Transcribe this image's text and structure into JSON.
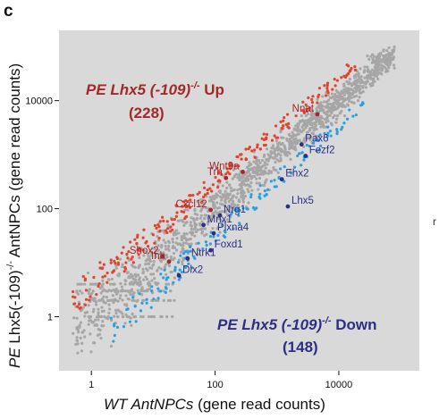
{
  "panel_label": "c",
  "stray_char": "r",
  "colors": {
    "background": "#d9d9d9",
    "nonsignificant": "#a6a6a6",
    "up_points": "#e0452f",
    "down_points": "#2c9fe0",
    "up_labels": "#a3282a",
    "down_labels": "#2d2f86"
  },
  "chart_data": {
    "type": "scatter",
    "scale": "log10",
    "xlabel_italic": "WT AntNPCs",
    "xlabel_rest": " (gene read counts)",
    "ylabel_prefix": "PE ",
    "ylabel_gene": "Lhx5(-109)",
    "ylabel_sup": "-/-",
    "ylabel_rest": " AntNPCs (gene read counts)",
    "xlim": [
      0.3,
      200000
    ],
    "ylim": [
      0.1,
      200000
    ],
    "x_ticks": [
      1,
      100,
      10000
    ],
    "y_ticks": [
      1,
      100,
      10000
    ],
    "x_tick_labels": [
      "1",
      "100",
      "10000"
    ],
    "y_tick_labels": [
      "1",
      "100",
      "10000"
    ],
    "grid": false,
    "up_group": {
      "title_prefix": "PE ",
      "title_gene": "Lhx5 (-109)",
      "title_sup": "-/-",
      "title_suffix": " Up",
      "count": "(228)"
    },
    "down_group": {
      "title_prefix": "PE ",
      "title_gene": "Lhx5 (-109)",
      "title_sup": "-/-",
      "title_suffix": " Down",
      "count": "(148)"
    },
    "labeled_genes_up": [
      {
        "name": "Nnat",
        "x": 4500,
        "y": 5600
      },
      {
        "name": "Wnt9a",
        "x": 280,
        "y": 480
      },
      {
        "name": "Trh",
        "x": 150,
        "y": 370
      },
      {
        "name": "Cxcl12",
        "x": 85,
        "y": 95
      },
      {
        "name": "Shox2",
        "x": 14,
        "y": 13
      },
      {
        "name": "Ihh",
        "x": 18,
        "y": 10.5
      }
    ],
    "labeled_genes_down": [
      {
        "name": "Pax6",
        "x": 2500,
        "y": 1550
      },
      {
        "name": "Fezf2",
        "x": 2900,
        "y": 950
      },
      {
        "name": "Ehx2",
        "x": 1200,
        "y": 350
      },
      {
        "name": "Lhx5",
        "x": 1500,
        "y": 110
      },
      {
        "name": "Nrg1",
        "x": 120,
        "y": 75
      },
      {
        "name": "Mnx1",
        "x": 65,
        "y": 50
      },
      {
        "name": "Plxna4",
        "x": 95,
        "y": 35
      },
      {
        "name": "Foxd1",
        "x": 85,
        "y": 17
      },
      {
        "name": "Ntrk1",
        "x": 36,
        "y": 12
      },
      {
        "name": "Dlx2",
        "x": 26,
        "y": 5.8
      }
    ]
  }
}
